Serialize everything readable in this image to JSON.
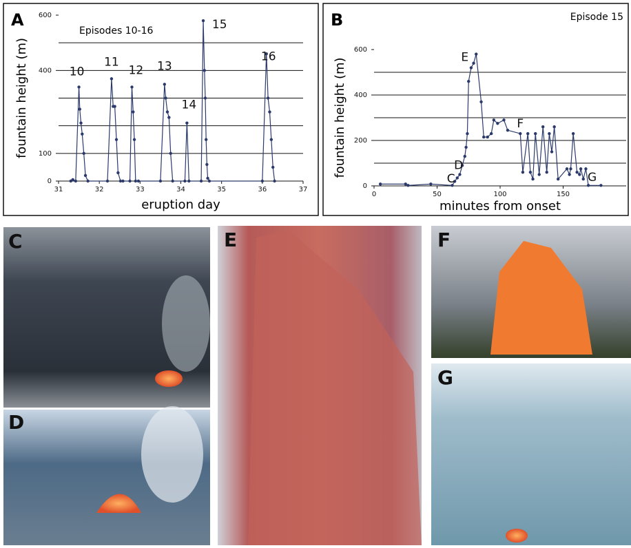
{
  "chart_data": [
    {
      "type": "line",
      "panel_label": "A",
      "title": "Episodes 10-16",
      "x_label": "eruption day",
      "y_label": "fountain height (m)",
      "color": "#2b3a6b",
      "xlim": [
        31,
        37
      ],
      "xticks": [
        31,
        32,
        33,
        34,
        35,
        36,
        37
      ],
      "ylim": [
        0,
        600
      ],
      "yticks": [
        0,
        100,
        400,
        600
      ],
      "gridlines": [
        100,
        200,
        300,
        400,
        500
      ],
      "x": [
        31.3,
        31.35,
        31.42,
        31.5,
        31.52,
        31.55,
        31.58,
        31.62,
        31.66,
        31.72,
        32.2,
        32.3,
        32.34,
        32.38,
        32.42,
        32.46,
        32.52,
        32.58,
        32.75,
        32.8,
        32.83,
        32.86,
        32.89,
        32.96,
        33.5,
        33.6,
        33.63,
        33.67,
        33.71,
        33.75,
        33.8,
        34.1,
        34.15,
        34.2,
        34.5,
        34.55,
        34.58,
        34.6,
        34.62,
        34.64,
        34.66,
        34.7,
        36.0,
        36.1,
        36.14,
        36.18,
        36.22,
        36.26,
        36.3
      ],
      "values": [
        0,
        5,
        0,
        340,
        260,
        210,
        170,
        100,
        20,
        0,
        0,
        370,
        270,
        270,
        150,
        30,
        0,
        0,
        0,
        340,
        250,
        150,
        0,
        0,
        0,
        350,
        300,
        250,
        230,
        100,
        0,
        0,
        210,
        0,
        0,
        580,
        400,
        300,
        150,
        60,
        10,
        0,
        0,
        460,
        300,
        250,
        150,
        50,
        0
      ],
      "annotations": [
        {
          "text": "10",
          "x": 31.45,
          "y": 395
        },
        {
          "text": "11",
          "x": 32.3,
          "y": 430
        },
        {
          "text": "12",
          "x": 32.9,
          "y": 400
        },
        {
          "text": "13",
          "x": 33.6,
          "y": 415
        },
        {
          "text": "14",
          "x": 34.2,
          "y": 275
        },
        {
          "text": "15",
          "x": 34.95,
          "y": 565
        },
        {
          "text": "16",
          "x": 36.15,
          "y": 450
        }
      ]
    },
    {
      "type": "line",
      "panel_label": "B",
      "title": "Episode 15",
      "x_label": "minutes from onset",
      "y_label": "fountain height (m)",
      "color": "#2b3a6b",
      "xlim": [
        0,
        200
      ],
      "xticks": [
        0,
        50,
        100,
        150
      ],
      "ylim": [
        0,
        600
      ],
      "yticks": [
        0,
        200,
        400,
        600
      ],
      "gridlines": [
        100,
        200,
        300,
        400,
        500
      ],
      "x": [
        5,
        25,
        27,
        45,
        62,
        64,
        66,
        68,
        70,
        72,
        73,
        74,
        75,
        77,
        79,
        81,
        85,
        87,
        90,
        93,
        95,
        98,
        103,
        106,
        116,
        118,
        122,
        124,
        126,
        128,
        131,
        134,
        137,
        139,
        141,
        143,
        146,
        153,
        155,
        156,
        158,
        161,
        163,
        164,
        166,
        168,
        170,
        180
      ],
      "values": [
        8,
        8,
        2,
        8,
        2,
        20,
        35,
        50,
        90,
        130,
        170,
        230,
        460,
        520,
        540,
        580,
        370,
        215,
        215,
        230,
        290,
        275,
        290,
        245,
        230,
        60,
        230,
        60,
        30,
        230,
        50,
        260,
        60,
        230,
        150,
        260,
        30,
        75,
        50,
        75,
        230,
        60,
        50,
        75,
        30,
        75,
        2,
        2
      ],
      "annotations": [
        {
          "text": "C",
          "x": 61,
          "y": 30
        },
        {
          "text": "D",
          "x": 67,
          "y": 90
        },
        {
          "text": "E",
          "x": 72,
          "y": 565
        },
        {
          "text": "F",
          "x": 116,
          "y": 272
        },
        {
          "text": "G",
          "x": 173,
          "y": 36
        }
      ]
    }
  ],
  "photos": [
    {
      "label": "C"
    },
    {
      "label": "D"
    },
    {
      "label": "E"
    },
    {
      "label": "F"
    },
    {
      "label": "G"
    }
  ]
}
